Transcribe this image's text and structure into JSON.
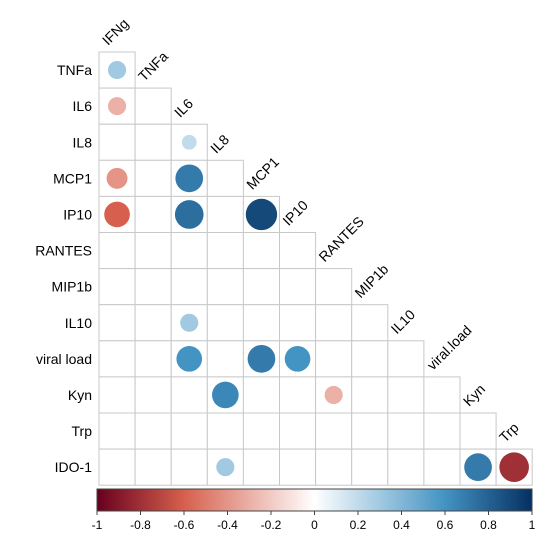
{
  "chart_data": {
    "type": "heatmap",
    "style": "lower-triangle correlation matrix with circle markers",
    "row_labels": [
      "TNFa",
      "IL6",
      "IL8",
      "MCP1",
      "IP10",
      "RANTES",
      "MIP1b",
      "IL10",
      "viral load",
      "Kyn",
      "Trp",
      "IDO-1"
    ],
    "col_labels": [
      "IFNg",
      "TNFa",
      "IL6",
      "IL8",
      "MCP1",
      "IP10",
      "RANTES",
      "MIP1b",
      "IL10",
      "viral.load",
      "Kyn",
      "Trp"
    ],
    "cells": [
      {
        "row": "TNFa",
        "col": "IFNg",
        "value": 0.3
      },
      {
        "row": "IL6",
        "col": "IFNg",
        "value": -0.3
      },
      {
        "row": "IL8",
        "col": "IL6",
        "value": 0.2
      },
      {
        "row": "MCP1",
        "col": "IFNg",
        "value": -0.4
      },
      {
        "row": "MCP1",
        "col": "IL6",
        "value": 0.7
      },
      {
        "row": "IP10",
        "col": "IFNg",
        "value": -0.6
      },
      {
        "row": "IP10",
        "col": "IL6",
        "value": 0.75
      },
      {
        "row": "IP10",
        "col": "MCP1",
        "value": 0.9
      },
      {
        "row": "IL10",
        "col": "IL6",
        "value": 0.3
      },
      {
        "row": "viral load",
        "col": "IL6",
        "value": 0.6
      },
      {
        "row": "viral load",
        "col": "MCP1",
        "value": 0.7
      },
      {
        "row": "viral load",
        "col": "IP10",
        "value": 0.6
      },
      {
        "row": "Kyn",
        "col": "IL8",
        "value": 0.65
      },
      {
        "row": "Kyn",
        "col": "RANTES",
        "value": -0.3
      },
      {
        "row": "IDO-1",
        "col": "IL8",
        "value": 0.3
      },
      {
        "row": "IDO-1",
        "col": "Kyn",
        "value": 0.7
      },
      {
        "row": "IDO-1",
        "col": "Trp",
        "value": -0.8
      }
    ],
    "colorbar": {
      "range": [
        -1,
        1
      ],
      "ticks": [
        "-1",
        "-0.8",
        "-0.6",
        "-0.4",
        "-0.2",
        "0",
        "0.2",
        "0.4",
        "0.6",
        "0.8",
        "1"
      ],
      "colors": {
        "neg": "#67001f",
        "neg_mid": "#d6604d",
        "zero": "#ffffff",
        "pos_mid": "#4393c3",
        "pos": "#053061"
      }
    },
    "grid": true,
    "legend": "bottom"
  }
}
